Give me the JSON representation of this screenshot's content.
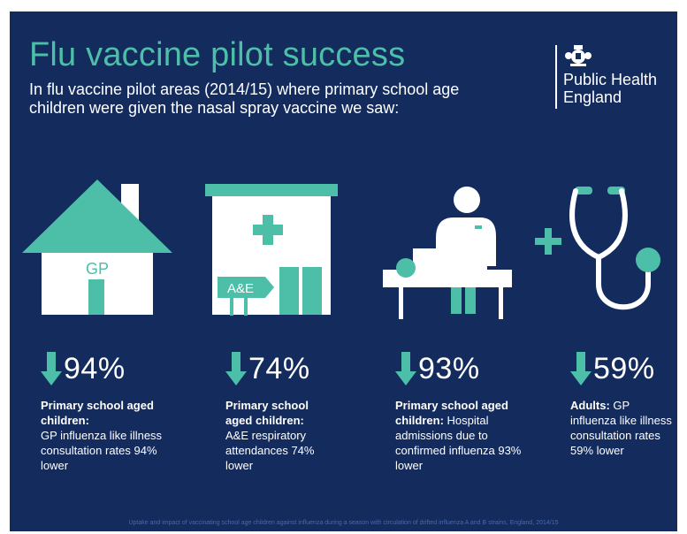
{
  "title": "Flu vaccine pilot success",
  "subtitle": "In flu vaccine pilot areas (2014/15) where primary school age children were given the nasal spray vaccine we saw:",
  "logo": {
    "line1": "Public Health",
    "line2": "England",
    "icon": "royal-crest-icon"
  },
  "colors": {
    "background": "#142b5e",
    "accent": "#4dbfa8",
    "text": "#ffffff"
  },
  "icons": {
    "gp_label": "GP",
    "ae_label": "A&E"
  },
  "stats": [
    {
      "value": "94%",
      "desc_bold": "Primary school aged children:",
      "desc_rest": "GP influenza like illness consultation rates 94% lower"
    },
    {
      "value": "74%",
      "desc_bold": "Primary school aged children:",
      "desc_rest": "A&E respiratory attendances 74% lower"
    },
    {
      "value": "93%",
      "desc_bold": "Primary school aged children:",
      "desc_rest": "Hospital admissions due to confirmed influenza 93% lower"
    },
    {
      "value": "59%",
      "desc_bold": "Adults:",
      "desc_rest": "GP influenza like illness consultation rates 59% lower"
    }
  ],
  "footer": "Uptake and impact of vaccinating school age children against influenza during a season with circulation of drifted influenza A and B strains, England, 2014/15"
}
